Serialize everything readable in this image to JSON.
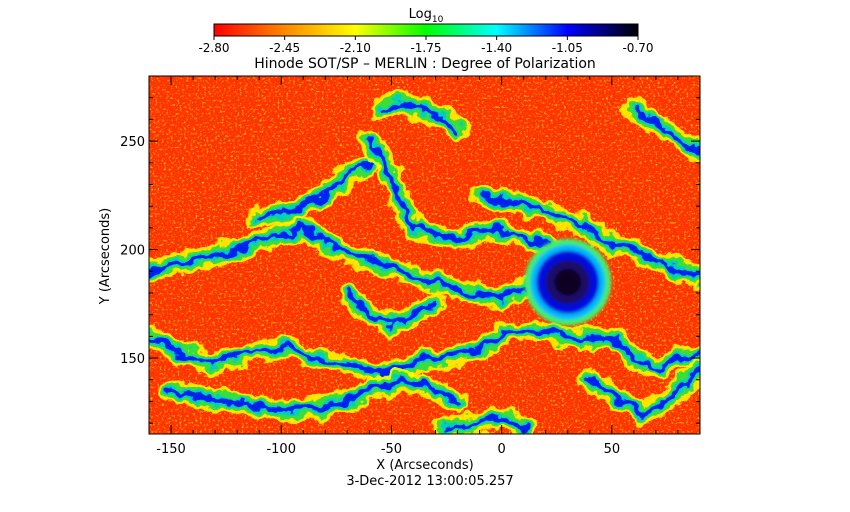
{
  "chart_data": {
    "type": "heatmap",
    "title": "Hinode SOT/SP – MERLIN : Degree of Polarization",
    "xlabel": "X (Arcseconds)",
    "ylabel": "Y (Arcseconds)",
    "xlim": [
      -160,
      90
    ],
    "ylim": [
      115,
      280
    ],
    "x_ticks": [
      -150,
      -100,
      -50,
      0,
      50
    ],
    "y_ticks": [
      150,
      200,
      250
    ],
    "colorbar": {
      "label_base": "Log",
      "label_sub": "10",
      "range": [
        -2.8,
        -0.7
      ],
      "ticks": [
        "-2.80",
        "-2.45",
        "-2.10",
        "-1.75",
        "-1.40",
        "-1.05",
        "-0.70"
      ],
      "colors": [
        "#ff0000",
        "#ff8800",
        "#ffff00",
        "#00ff00",
        "#00ffff",
        "#0000ff",
        "#000000"
      ]
    },
    "timestamp": "3-Dec-2012 13:00:05.257",
    "features": [
      {
        "name": "sunspot",
        "x": 30,
        "y": 185,
        "radius": 10,
        "value": -0.8
      },
      {
        "name": "sunspot-penumbra",
        "x": 30,
        "y": 185,
        "radius": 17,
        "value": -1.35
      }
    ],
    "network_lanes": [
      [
        [
          -160,
          190
        ],
        [
          -140,
          195
        ],
        [
          -120,
          200
        ],
        [
          -105,
          205
        ],
        [
          -90,
          210
        ],
        [
          -75,
          200
        ],
        [
          -60,
          195
        ],
        [
          -45,
          190
        ],
        [
          -30,
          185
        ],
        [
          -15,
          180
        ],
        [
          0,
          178
        ],
        [
          15,
          183
        ]
      ],
      [
        [
          -110,
          215
        ],
        [
          -95,
          218
        ],
        [
          -80,
          225
        ],
        [
          -70,
          235
        ],
        [
          -60,
          240
        ]
      ],
      [
        [
          -60,
          250
        ],
        [
          -52,
          240
        ],
        [
          -48,
          225
        ],
        [
          -40,
          210
        ],
        [
          -20,
          205
        ],
        [
          -5,
          210
        ],
        [
          10,
          205
        ],
        [
          25,
          200
        ]
      ],
      [
        [
          -55,
          265
        ],
        [
          -45,
          268
        ],
        [
          -30,
          262
        ],
        [
          -20,
          255
        ]
      ],
      [
        [
          -10,
          225
        ],
        [
          5,
          222
        ],
        [
          20,
          218
        ],
        [
          35,
          212
        ],
        [
          45,
          205
        ],
        [
          60,
          200
        ],
        [
          75,
          192
        ],
        [
          90,
          188
        ]
      ],
      [
        [
          -160,
          160
        ],
        [
          -145,
          152
        ],
        [
          -130,
          148
        ],
        [
          -115,
          152
        ],
        [
          -100,
          155
        ],
        [
          -85,
          150
        ],
        [
          -70,
          147
        ],
        [
          -55,
          143
        ],
        [
          -40,
          148
        ],
        [
          -25,
          150
        ],
        [
          -10,
          155
        ],
        [
          5,
          162
        ],
        [
          20,
          163
        ],
        [
          35,
          158
        ],
        [
          50,
          160
        ],
        [
          60,
          150
        ],
        [
          70,
          145
        ],
        [
          80,
          150
        ],
        [
          90,
          152
        ]
      ],
      [
        [
          -150,
          135
        ],
        [
          -130,
          130
        ],
        [
          -110,
          128
        ],
        [
          -95,
          125
        ],
        [
          -80,
          128
        ],
        [
          -60,
          135
        ],
        [
          -45,
          140
        ],
        [
          -30,
          135
        ],
        [
          -20,
          130
        ]
      ],
      [
        [
          -70,
          180
        ],
        [
          -60,
          170
        ],
        [
          -50,
          165
        ],
        [
          -40,
          170
        ],
        [
          -30,
          175
        ]
      ],
      [
        [
          40,
          140
        ],
        [
          55,
          130
        ],
        [
          65,
          125
        ],
        [
          75,
          130
        ],
        [
          85,
          140
        ],
        [
          90,
          145
        ]
      ],
      [
        [
          -25,
          118
        ],
        [
          -10,
          120
        ],
        [
          0,
          122
        ],
        [
          10,
          118
        ]
      ],
      [
        [
          60,
          265
        ],
        [
          70,
          258
        ],
        [
          80,
          250
        ],
        [
          90,
          245
        ]
      ]
    ]
  }
}
